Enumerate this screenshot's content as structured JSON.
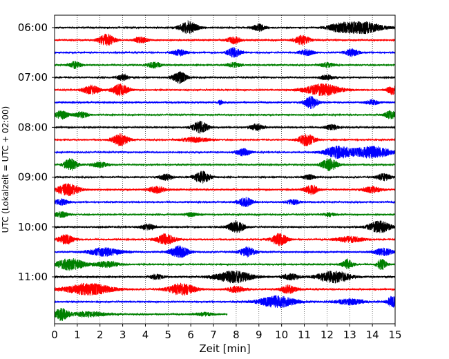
{
  "chart_data": {
    "type": "line",
    "subtype": "helicorder",
    "xlabel": "Zeit  [min]",
    "ylabel": "UTC (Lokalzeit = UTC + 02:00)",
    "xlim": [
      0,
      15
    ],
    "x_ticks": [
      "0",
      "1",
      "2",
      "3",
      "4",
      "5",
      "6",
      "7",
      "8",
      "9",
      "10",
      "11",
      "12",
      "13",
      "14",
      "15"
    ],
    "y_tick_labels": [
      "06:00",
      "07:00",
      "08:00",
      "09:00",
      "10:00",
      "11:00"
    ],
    "line_interval_min": 15,
    "start_time": "06:00",
    "vertical_grid": "dotted, every 1 min",
    "trace_colors": [
      "#000000",
      "#ff0000",
      "#0000ff",
      "#008000"
    ],
    "traces": [
      {
        "start": "06:00",
        "end_min": 15,
        "color": "#000000",
        "bursts": [
          [
            5.9,
            0.4,
            1.0
          ],
          [
            9.0,
            0.25,
            0.6
          ],
          [
            13.5,
            0.9,
            1.0
          ],
          [
            12.5,
            0.5,
            0.5
          ]
        ]
      },
      {
        "start": "06:15",
        "end_min": 15,
        "color": "#ff0000",
        "bursts": [
          [
            2.3,
            0.35,
            1.0
          ],
          [
            3.8,
            0.3,
            0.5
          ],
          [
            7.9,
            0.3,
            0.6
          ],
          [
            10.9,
            0.35,
            0.8
          ]
        ]
      },
      {
        "start": "06:30",
        "end_min": 15,
        "color": "#0000ff",
        "bursts": [
          [
            5.5,
            0.3,
            0.5
          ],
          [
            7.9,
            0.3,
            0.8
          ],
          [
            11.1,
            0.3,
            0.5
          ],
          [
            13.1,
            0.3,
            0.6
          ]
        ]
      },
      {
        "start": "06:45",
        "end_min": 15,
        "color": "#008000",
        "bursts": [
          [
            0.9,
            0.25,
            0.6
          ],
          [
            4.4,
            0.3,
            0.5
          ],
          [
            7.9,
            0.3,
            0.4
          ],
          [
            12.0,
            0.3,
            0.4
          ]
        ]
      },
      {
        "start": "07:00",
        "end_min": 15,
        "color": "#000000",
        "bursts": [
          [
            5.5,
            0.3,
            1.0
          ],
          [
            3.0,
            0.25,
            0.5
          ],
          [
            12.0,
            0.3,
            0.4
          ]
        ]
      },
      {
        "start": "07:15",
        "end_min": 15,
        "color": "#ff0000",
        "bursts": [
          [
            1.6,
            0.35,
            0.8
          ],
          [
            2.9,
            0.35,
            1.0
          ],
          [
            11.8,
            0.8,
            1.0
          ],
          [
            14.9,
            0.25,
            0.8
          ]
        ]
      },
      {
        "start": "07:30",
        "end_min": 15,
        "color": "#0000ff",
        "bursts": [
          [
            11.3,
            0.3,
            1.0
          ],
          [
            7.3,
            0.1,
            0.4
          ],
          [
            14.0,
            0.3,
            0.4
          ]
        ]
      },
      {
        "start": "07:45",
        "end_min": 15,
        "color": "#008000",
        "bursts": [
          [
            0.3,
            0.3,
            0.7
          ],
          [
            1.2,
            0.3,
            0.5
          ],
          [
            14.8,
            0.25,
            0.7
          ]
        ]
      },
      {
        "start": "08:00",
        "end_min": 15,
        "color": "#000000",
        "bursts": [
          [
            6.4,
            0.35,
            1.0
          ],
          [
            8.9,
            0.3,
            0.5
          ],
          [
            12.2,
            0.3,
            0.4
          ]
        ]
      },
      {
        "start": "08:15",
        "end_min": 15,
        "color": "#ff0000",
        "bursts": [
          [
            2.9,
            0.35,
            1.0
          ],
          [
            6.2,
            0.6,
            0.4
          ],
          [
            11.1,
            0.35,
            1.0
          ]
        ]
      },
      {
        "start": "08:30",
        "end_min": 15,
        "color": "#0000ff",
        "bursts": [
          [
            8.3,
            0.3,
            0.6
          ],
          [
            12.5,
            0.6,
            1.0
          ],
          [
            14.0,
            0.8,
            1.0
          ]
        ]
      },
      {
        "start": "08:45",
        "end_min": 15,
        "color": "#008000",
        "bursts": [
          [
            0.7,
            0.3,
            1.0
          ],
          [
            2.0,
            0.4,
            0.4
          ],
          [
            12.1,
            0.35,
            1.0
          ]
        ]
      },
      {
        "start": "09:00",
        "end_min": 15,
        "color": "#000000",
        "bursts": [
          [
            6.5,
            0.35,
            1.0
          ],
          [
            4.9,
            0.3,
            0.5
          ],
          [
            11.2,
            0.25,
            0.4
          ],
          [
            14.5,
            0.3,
            0.6
          ]
        ]
      },
      {
        "start": "09:15",
        "end_min": 15,
        "color": "#ff0000",
        "bursts": [
          [
            0.6,
            0.5,
            1.0
          ],
          [
            4.5,
            0.35,
            0.6
          ],
          [
            11.3,
            0.3,
            0.8
          ],
          [
            14.0,
            0.4,
            0.5
          ]
        ]
      },
      {
        "start": "09:30",
        "end_min": 15,
        "color": "#0000ff",
        "bursts": [
          [
            0.3,
            0.3,
            0.5
          ],
          [
            8.4,
            0.3,
            0.8
          ],
          [
            10.5,
            0.3,
            0.4
          ]
        ]
      },
      {
        "start": "09:45",
        "end_min": 15,
        "color": "#008000",
        "bursts": [
          [
            0.3,
            0.3,
            0.5
          ],
          [
            6.0,
            0.3,
            0.3
          ],
          [
            12.1,
            0.25,
            0.3
          ]
        ]
      },
      {
        "start": "10:00",
        "end_min": 15,
        "color": "#000000",
        "bursts": [
          [
            4.1,
            0.3,
            0.5
          ],
          [
            8.0,
            0.35,
            1.0
          ],
          [
            14.3,
            0.5,
            1.0
          ]
        ]
      },
      {
        "start": "10:15",
        "end_min": 15,
        "color": "#ff0000",
        "bursts": [
          [
            0.5,
            0.35,
            0.8
          ],
          [
            4.9,
            0.4,
            0.9
          ],
          [
            9.9,
            0.35,
            1.0
          ],
          [
            13.0,
            0.6,
            0.5
          ]
        ]
      },
      {
        "start": "10:30",
        "end_min": 15,
        "color": "#0000ff",
        "bursts": [
          [
            2.2,
            0.7,
            0.7
          ],
          [
            5.5,
            0.4,
            1.0
          ],
          [
            8.5,
            0.35,
            0.8
          ],
          [
            14.5,
            0.4,
            0.6
          ]
        ]
      },
      {
        "start": "10:45",
        "end_min": 15,
        "color": "#008000",
        "bursts": [
          [
            0.7,
            0.6,
            1.0
          ],
          [
            2.3,
            0.5,
            0.5
          ],
          [
            12.9,
            0.25,
            0.8
          ],
          [
            14.4,
            0.2,
            0.9
          ]
        ]
      },
      {
        "start": "11:00",
        "end_min": 15,
        "color": "#000000",
        "bursts": [
          [
            7.9,
            0.8,
            1.0
          ],
          [
            12.3,
            0.7,
            1.0
          ],
          [
            10.4,
            0.4,
            0.5
          ],
          [
            4.5,
            0.3,
            0.4
          ]
        ]
      },
      {
        "start": "11:15",
        "end_min": 15,
        "color": "#ff0000",
        "bursts": [
          [
            1.5,
            1.0,
            1.0
          ],
          [
            5.6,
            0.6,
            1.0
          ],
          [
            10.3,
            0.35,
            0.7
          ],
          [
            8.0,
            0.4,
            0.5
          ]
        ]
      },
      {
        "start": "11:30",
        "end_min": 15,
        "color": "#0000ff",
        "bursts": [
          [
            9.8,
            0.8,
            1.0
          ],
          [
            13.0,
            0.6,
            0.5
          ],
          [
            14.9,
            0.25,
            0.9
          ]
        ]
      },
      {
        "start": "11:45",
        "end_min": 7.6,
        "color": "#008000",
        "bursts": [
          [
            0.3,
            0.3,
            1.0
          ],
          [
            1.5,
            0.8,
            0.4
          ],
          [
            6.6,
            0.4,
            0.3
          ]
        ]
      }
    ]
  }
}
